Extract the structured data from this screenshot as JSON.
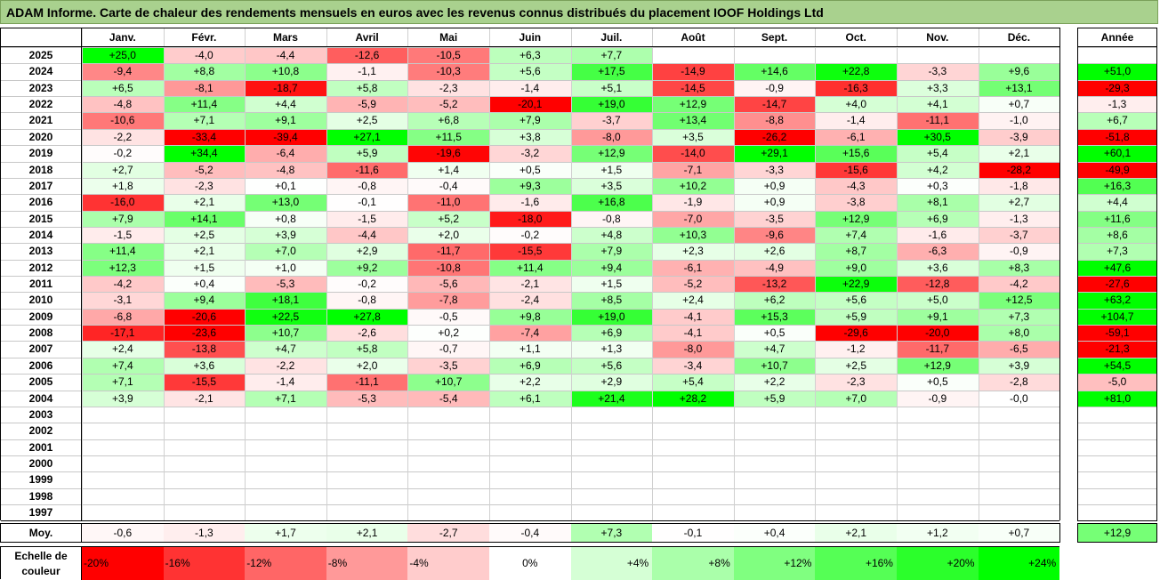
{
  "title": "ADAM Informe. Carte de chaleur des rendements mensuels en euros avec les revenus connus distribués du placement IOOF Holdings Ltd",
  "chart_data": {
    "type": "heatmap",
    "months": [
      "Janv.",
      "Févr.",
      "Mars",
      "Avril",
      "Mai",
      "Juin",
      "Juil.",
      "Août",
      "Sept.",
      "Oct.",
      "Nov.",
      "Déc."
    ],
    "year_header": "Année",
    "rows": [
      {
        "year": "2025",
        "values": [
          25.0,
          -4.0,
          -4.4,
          -12.6,
          -10.5,
          6.3,
          7.7,
          null,
          null,
          null,
          null,
          null
        ],
        "annual": null
      },
      {
        "year": "2024",
        "values": [
          -9.4,
          8.8,
          10.8,
          -1.1,
          -10.3,
          5.6,
          17.5,
          -14.9,
          14.6,
          22.8,
          -3.3,
          9.6
        ],
        "annual": 51.0
      },
      {
        "year": "2023",
        "values": [
          6.5,
          -8.1,
          -18.7,
          5.8,
          -2.3,
          -1.4,
          5.1,
          -14.5,
          -0.9,
          -16.3,
          3.3,
          13.1
        ],
        "annual": -29.3
      },
      {
        "year": "2022",
        "values": [
          -4.8,
          11.4,
          4.4,
          -5.9,
          -5.2,
          -20.1,
          19.0,
          12.9,
          -14.7,
          4.0,
          4.1,
          0.7
        ],
        "annual": -1.3
      },
      {
        "year": "2021",
        "values": [
          -10.6,
          7.1,
          9.1,
          2.5,
          6.8,
          7.9,
          -3.7,
          13.4,
          -8.8,
          -1.4,
          -11.1,
          -1.0
        ],
        "annual": 6.7
      },
      {
        "year": "2020",
        "values": [
          -2.2,
          -33.4,
          -39.4,
          27.1,
          11.5,
          3.8,
          -8.0,
          3.5,
          -26.2,
          -6.1,
          30.5,
          -3.9
        ],
        "annual": -51.8
      },
      {
        "year": "2019",
        "values": [
          -0.2,
          34.4,
          -6.4,
          5.9,
          -19.6,
          -3.2,
          12.9,
          -14.0,
          29.1,
          15.6,
          5.4,
          2.1
        ],
        "annual": 60.1
      },
      {
        "year": "2018",
        "values": [
          2.7,
          -5.2,
          -4.8,
          -11.6,
          1.4,
          0.5,
          1.5,
          -7.1,
          -3.3,
          -15.6,
          4.2,
          -28.2
        ],
        "annual": -49.9
      },
      {
        "year": "2017",
        "values": [
          1.8,
          -2.3,
          0.1,
          -0.8,
          -0.4,
          9.3,
          3.5,
          10.2,
          0.9,
          -4.3,
          0.3,
          -1.8
        ],
        "annual": 16.3
      },
      {
        "year": "2016",
        "values": [
          -16.0,
          2.1,
          13.0,
          -0.1,
          -11.0,
          -1.6,
          16.8,
          -1.9,
          0.9,
          -3.8,
          8.1,
          2.7
        ],
        "annual": 4.4
      },
      {
        "year": "2015",
        "values": [
          7.9,
          14.1,
          0.8,
          -1.5,
          5.2,
          -18.0,
          -0.8,
          -7.0,
          -3.5,
          12.9,
          6.9,
          -1.3
        ],
        "annual": 11.6
      },
      {
        "year": "2014",
        "values": [
          -1.5,
          2.5,
          3.9,
          -4.4,
          2.0,
          -0.2,
          4.8,
          10.3,
          -9.6,
          7.4,
          -1.6,
          -3.7
        ],
        "annual": 8.6
      },
      {
        "year": "2013",
        "values": [
          11.4,
          2.1,
          7.0,
          2.9,
          -11.7,
          -15.5,
          7.9,
          2.3,
          2.6,
          8.7,
          -6.3,
          -0.9
        ],
        "annual": 7.3
      },
      {
        "year": "2012",
        "values": [
          12.3,
          1.5,
          1.0,
          9.2,
          -10.8,
          11.4,
          9.4,
          -6.1,
          -4.9,
          9.0,
          3.6,
          8.3
        ],
        "annual": 47.6
      },
      {
        "year": "2011",
        "values": [
          -4.2,
          0.4,
          -5.3,
          -0.2,
          -5.6,
          -2.1,
          1.5,
          -5.2,
          -13.2,
          22.9,
          -12.8,
          -4.2
        ],
        "annual": -27.6
      },
      {
        "year": "2010",
        "values": [
          -3.1,
          9.4,
          18.1,
          -0.8,
          -7.8,
          -2.4,
          8.5,
          2.4,
          6.2,
          5.6,
          5.0,
          12.5
        ],
        "annual": 63.2
      },
      {
        "year": "2009",
        "values": [
          -6.8,
          -20.6,
          22.5,
          27.8,
          -0.5,
          9.8,
          19.0,
          -4.1,
          15.3,
          5.9,
          9.1,
          7.3
        ],
        "annual": 104.7
      },
      {
        "year": "2008",
        "values": [
          -17.1,
          -23.6,
          10.7,
          -2.6,
          0.2,
          -7.4,
          6.9,
          -4.1,
          0.5,
          -29.6,
          -20.0,
          8.0
        ],
        "annual": -59.1
      },
      {
        "year": "2007",
        "values": [
          2.4,
          -13.8,
          4.7,
          5.8,
          -0.7,
          1.1,
          1.3,
          -8.0,
          4.7,
          -1.2,
          -11.7,
          -6.5
        ],
        "annual": -21.3
      },
      {
        "year": "2006",
        "values": [
          7.4,
          3.6,
          -2.2,
          2.0,
          -3.5,
          6.9,
          5.6,
          -3.4,
          10.7,
          2.5,
          12.9,
          3.9
        ],
        "annual": 54.5
      },
      {
        "year": "2005",
        "values": [
          7.1,
          -15.5,
          -1.4,
          -11.1,
          10.7,
          2.2,
          2.9,
          5.4,
          2.2,
          -2.3,
          0.5,
          -2.8
        ],
        "annual": -5.0
      },
      {
        "year": "2004",
        "values": [
          3.9,
          -2.1,
          7.1,
          -5.3,
          -5.4,
          6.1,
          21.4,
          28.2,
          5.9,
          7.0,
          -0.9,
          -0.0
        ],
        "annual": 81.0
      },
      {
        "year": "2003",
        "values": [
          null,
          null,
          null,
          null,
          null,
          null,
          null,
          null,
          null,
          null,
          null,
          null
        ],
        "annual": null
      },
      {
        "year": "2002",
        "values": [
          null,
          null,
          null,
          null,
          null,
          null,
          null,
          null,
          null,
          null,
          null,
          null
        ],
        "annual": null
      },
      {
        "year": "2001",
        "values": [
          null,
          null,
          null,
          null,
          null,
          null,
          null,
          null,
          null,
          null,
          null,
          null
        ],
        "annual": null
      },
      {
        "year": "2000",
        "values": [
          null,
          null,
          null,
          null,
          null,
          null,
          null,
          null,
          null,
          null,
          null,
          null
        ],
        "annual": null
      },
      {
        "year": "1999",
        "values": [
          null,
          null,
          null,
          null,
          null,
          null,
          null,
          null,
          null,
          null,
          null,
          null
        ],
        "annual": null
      },
      {
        "year": "1998",
        "values": [
          null,
          null,
          null,
          null,
          null,
          null,
          null,
          null,
          null,
          null,
          null,
          null
        ],
        "annual": null
      },
      {
        "year": "1997",
        "values": [
          null,
          null,
          null,
          null,
          null,
          null,
          null,
          null,
          null,
          null,
          null,
          null
        ],
        "annual": null
      }
    ],
    "average": {
      "label": "Moy.",
      "values": [
        -0.6,
        -1.3,
        1.7,
        2.1,
        -2.7,
        -0.4,
        7.3,
        -0.1,
        0.4,
        2.1,
        1.2,
        0.7
      ],
      "annual": 12.9
    },
    "scale": {
      "label": "Echelle de couleur",
      "steps": [
        {
          "text": "-20%",
          "value": -20
        },
        {
          "text": "-16%",
          "value": -16
        },
        {
          "text": "-12%",
          "value": -12
        },
        {
          "text": "-8%",
          "value": -8
        },
        {
          "text": "-4%",
          "value": -4
        },
        {
          "text": "0%",
          "value": 0
        },
        {
          "text": "+4%",
          "value": 4
        },
        {
          "text": "+8%",
          "value": 8
        },
        {
          "text": "+12%",
          "value": 12
        },
        {
          "text": "+16%",
          "value": 16
        },
        {
          "text": "+20%",
          "value": 20
        },
        {
          "text": "+24%",
          "value": 24
        }
      ]
    },
    "colors": {
      "negative": "#ff0000",
      "positive": "#00ff00",
      "neutral": "#ffffff",
      "title_bg": "#a9d18e"
    }
  }
}
